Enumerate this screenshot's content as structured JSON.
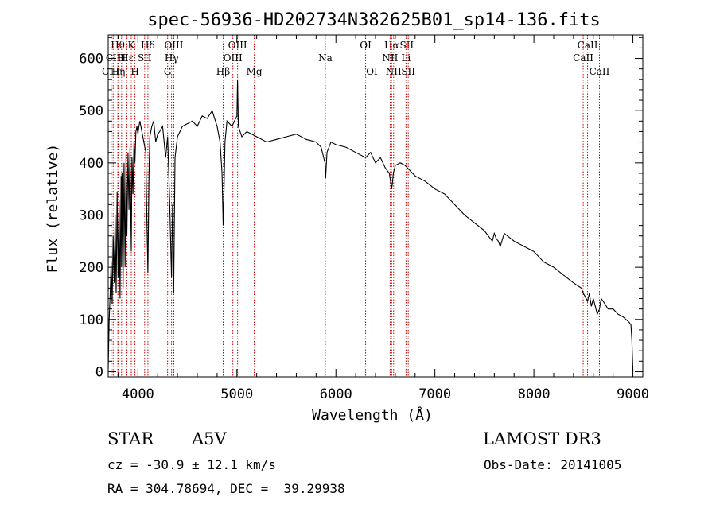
{
  "chart_data": {
    "type": "line",
    "title": "spec-56936-HD202734N382625B01_sp14-136.fits",
    "xlabel": "Wavelength (Å)",
    "ylabel": "Flux (relative)",
    "xlim": [
      3700,
      9100
    ],
    "ylim": [
      -10,
      645
    ],
    "xticks": [
      4000,
      5000,
      6000,
      7000,
      8000,
      9000
    ],
    "yticks": [
      0,
      100,
      200,
      300,
      400,
      500,
      600
    ],
    "series": [
      {
        "name": "spectrum",
        "x": [
          3700,
          3710,
          3720,
          3730,
          3740,
          3750,
          3760,
          3770,
          3780,
          3790,
          3800,
          3810,
          3820,
          3830,
          3835,
          3840,
          3850,
          3860,
          3870,
          3880,
          3889,
          3900,
          3910,
          3920,
          3933,
          3940,
          3950,
          3960,
          3970,
          3980,
          3990,
          4000,
          4010,
          4020,
          4040,
          4060,
          4080,
          4090,
          4101,
          4112,
          4120,
          4140,
          4160,
          4180,
          4200,
          4220,
          4250,
          4280,
          4300,
          4320,
          4340,
          4350,
          4361,
          4375,
          4400,
          4450,
          4500,
          4550,
          4600,
          4650,
          4700,
          4750,
          4800,
          4830,
          4850,
          4861,
          4870,
          4880,
          4900,
          4950,
          5000,
          5007,
          5015,
          5050,
          5100,
          5150,
          5200,
          5300,
          5400,
          5500,
          5600,
          5700,
          5800,
          5850,
          5890,
          5896,
          5910,
          5950,
          6000,
          6100,
          6200,
          6300,
          6350,
          6400,
          6450,
          6500,
          6540,
          6556,
          6563,
          6570,
          6580,
          6600,
          6650,
          6700,
          6750,
          6800,
          6900,
          7000,
          7100,
          7200,
          7300,
          7400,
          7500,
          7580,
          7600,
          7620,
          7640,
          7660,
          7700,
          7800,
          7900,
          8000,
          8100,
          8200,
          8300,
          8400,
          8480,
          8500,
          8542,
          8560,
          8580,
          8600,
          8640,
          8662,
          8680,
          8700,
          8750,
          8800,
          8850,
          8900,
          8960,
          8980,
          8990,
          9000
        ],
        "values": [
          5,
          100,
          150,
          210,
          130,
          260,
          170,
          300,
          150,
          345,
          180,
          330,
          140,
          375,
          200,
          380,
          160,
          400,
          200,
          415,
          260,
          420,
          310,
          430,
          230,
          410,
          340,
          440,
          400,
          460,
          470,
          455,
          470,
          480,
          460,
          440,
          420,
          300,
          190,
          380,
          450,
          470,
          480,
          440,
          455,
          460,
          470,
          410,
          450,
          330,
          180,
          320,
          150,
          410,
          450,
          470,
          475,
          480,
          470,
          490,
          485,
          500,
          470,
          440,
          380,
          280,
          350,
          440,
          480,
          470,
          490,
          560,
          470,
          450,
          460,
          455,
          450,
          440,
          445,
          450,
          455,
          445,
          440,
          430,
          400,
          370,
          420,
          440,
          435,
          430,
          420,
          410,
          420,
          400,
          410,
          390,
          380,
          360,
          350,
          360,
          380,
          395,
          400,
          395,
          385,
          375,
          365,
          350,
          340,
          320,
          300,
          285,
          270,
          250,
          265,
          255,
          250,
          240,
          265,
          250,
          240,
          230,
          210,
          200,
          185,
          170,
          160,
          150,
          135,
          150,
          125,
          140,
          110,
          120,
          140,
          135,
          120,
          120,
          110,
          105,
          95,
          90,
          60,
          0
        ]
      }
    ],
    "line_markers": [
      {
        "label": "Hθ",
        "x": 3797,
        "row": 0
      },
      {
        "label": "CII",
        "x": 3750,
        "row": 1
      },
      {
        "label": "CIII",
        "x": 3730,
        "row": 2
      },
      {
        "label": "H",
        "x": 3835,
        "row": 1
      },
      {
        "label": "Hε",
        "x": 3889,
        "row": 1
      },
      {
        "label": "Hη",
        "x": 3800,
        "row": 2
      },
      {
        "label": "K",
        "x": 3933,
        "row": 0
      },
      {
        "label": "H",
        "x": 3970,
        "row": 2
      },
      {
        "label": "SII",
        "x": 4068,
        "row": 1
      },
      {
        "label": "Hδ",
        "x": 4101,
        "row": 0
      },
      {
        "label": "OIII",
        "x": 4363,
        "row": 0
      },
      {
        "label": "Hγ",
        "x": 4340,
        "row": 1
      },
      {
        "label": "G",
        "x": 4300,
        "row": 2
      },
      {
        "label": "Hβ",
        "x": 4861,
        "row": 2
      },
      {
        "label": "OIII",
        "x": 5007,
        "row": 0
      },
      {
        "label": "OIII",
        "x": 4959,
        "row": 1
      },
      {
        "label": "Mg",
        "x": 5175,
        "row": 2
      },
      {
        "label": "Na",
        "x": 5893,
        "row": 1
      },
      {
        "label": "OI",
        "x": 6300,
        "row": 0
      },
      {
        "label": "OI",
        "x": 6364,
        "row": 2
      },
      {
        "label": "Hα",
        "x": 6563,
        "row": 0
      },
      {
        "label": "NII",
        "x": 6548,
        "row": 1
      },
      {
        "label": "NII",
        "x": 6583,
        "row": 2
      },
      {
        "label": "SII",
        "x": 6716,
        "row": 0
      },
      {
        "label": "Li",
        "x": 6708,
        "row": 1
      },
      {
        "label": "SII",
        "x": 6731,
        "row": 2
      },
      {
        "label": "CaII",
        "x": 8542,
        "row": 0
      },
      {
        "label": "CaII",
        "x": 8498,
        "row": 1
      },
      {
        "label": "CaII",
        "x": 8662,
        "row": 2
      }
    ]
  },
  "info": {
    "object_class": "STAR",
    "subclass": "A5V",
    "survey": "LAMOST DR3",
    "redshift": "cz = -30.9 ± 12.1 km/s",
    "obs_date": "Obs-Date: 20141005",
    "coords": "RA = 304.78694, DEC =  39.29938"
  },
  "colors": {
    "line_marker": "#cc0000",
    "spectrum": "#000000",
    "axis": "#000000"
  }
}
